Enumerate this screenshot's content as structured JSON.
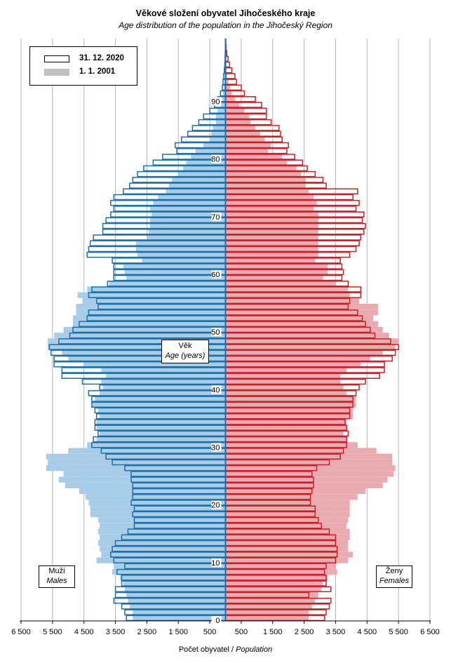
{
  "title": "Věkové složení obyvatel Jihočeského  kraje",
  "subtitle": "Age distribution of the population  in the Jihočeský Region",
  "xlabel": {
    "cz": "Počet obyvatel",
    "sep": " / ",
    "en": "Population"
  },
  "legend": {
    "current": "31. 12. 2020",
    "past": "1.   1. 2001"
  },
  "center_label": {
    "cz": "Věk",
    "en": "Age (years)"
  },
  "side_labels": {
    "males_cz": "Muži",
    "males_en": "Males",
    "females_cz": "Ženy",
    "females_en": "Females"
  },
  "colors": {
    "male_outline": "#1f6fa8",
    "male_past_fill": "#a8cde8",
    "female_outline": "#c8202a",
    "female_past_fill": "#eaabb0",
    "grid": "#b3b3b3"
  },
  "chart_data": {
    "type": "bar",
    "orientation": "horizontal",
    "layout": "population pyramid",
    "x_ticks": [
      "6 500",
      "5 500",
      "4 500",
      "3 500",
      "2 500",
      "1 500",
      "500",
      "500",
      "1 500",
      "2 500",
      "3 500",
      "4 500",
      "5 500",
      "6 500"
    ],
    "y_ticks": [
      0,
      10,
      20,
      30,
      40,
      50,
      60,
      70,
      80,
      90
    ],
    "xlim": [
      0,
      6500
    ],
    "ylim": [
      0,
      100
    ],
    "ages": [
      0,
      1,
      2,
      3,
      4,
      5,
      6,
      7,
      8,
      9,
      10,
      11,
      12,
      13,
      14,
      15,
      16,
      17,
      18,
      19,
      20,
      21,
      22,
      23,
      24,
      25,
      26,
      27,
      28,
      29,
      30,
      31,
      32,
      33,
      34,
      35,
      36,
      37,
      38,
      39,
      40,
      41,
      42,
      43,
      44,
      45,
      46,
      47,
      48,
      49,
      50,
      51,
      52,
      53,
      54,
      55,
      56,
      57,
      58,
      59,
      60,
      61,
      62,
      63,
      64,
      65,
      66,
      67,
      68,
      69,
      70,
      71,
      72,
      73,
      74,
      75,
      76,
      77,
      78,
      79,
      80,
      81,
      82,
      83,
      84,
      85,
      86,
      87,
      88,
      89,
      90,
      91,
      92,
      93,
      94,
      95,
      96,
      97,
      98,
      99,
      100
    ],
    "series": [
      {
        "name": "31. 12. 2020",
        "side": "males",
        "values": [
          3150,
          3200,
          3300,
          3550,
          3500,
          3500,
          3300,
          3300,
          3450,
          3200,
          3550,
          3650,
          3600,
          3500,
          3300,
          3100,
          2900,
          2900,
          2950,
          2900,
          3000,
          2950,
          2950,
          2950,
          3000,
          3000,
          3200,
          3600,
          3800,
          3950,
          4250,
          4200,
          4050,
          4150,
          4150,
          4100,
          4150,
          4250,
          4250,
          4350,
          4000,
          4550,
          5200,
          5200,
          5450,
          5450,
          5550,
          5600,
          5300,
          4950,
          4850,
          4650,
          4400,
          4350,
          4050,
          4100,
          4350,
          4250,
          3750,
          3550,
          3550,
          3550,
          3600,
          4400,
          4350,
          4300,
          4200,
          3900,
          3900,
          3800,
          3650,
          3550,
          3650,
          3550,
          3250,
          3050,
          2950,
          2800,
          2600,
          2300,
          2000,
          1550,
          1600,
          1400,
          1200,
          1050,
          850,
          700,
          500,
          350,
          250,
          160,
          100,
          80,
          60,
          40,
          25,
          15,
          10,
          5,
          3
        ]
      },
      {
        "name": "1.   1. 2001",
        "side": "males",
        "values": [
          2950,
          2950,
          3050,
          3100,
          3150,
          3200,
          3250,
          3350,
          3600,
          3550,
          4100,
          3950,
          4000,
          4050,
          4000,
          4050,
          4000,
          4050,
          4300,
          4300,
          4350,
          4450,
          4650,
          5100,
          5300,
          5150,
          5700,
          5650,
          5700,
          5000,
          4400,
          4100,
          4000,
          4100,
          4100,
          4000,
          4050,
          4250,
          4150,
          4000,
          3900,
          3950,
          3800,
          3950,
          4500,
          5000,
          5200,
          5650,
          5650,
          5450,
          5150,
          4850,
          4850,
          4750,
          4750,
          4550,
          4700,
          4400,
          3700,
          3150,
          3200,
          3250,
          2650,
          2800,
          2850,
          2850,
          2500,
          2450,
          2400,
          2400,
          2350,
          2400,
          2300,
          2150,
          1900,
          1800,
          1700,
          1500,
          1350,
          1250,
          1100,
          950,
          700,
          500,
          450,
          400,
          300,
          300,
          250,
          150,
          100,
          80,
          50,
          30,
          20,
          12,
          8,
          5,
          3,
          2,
          1
        ]
      },
      {
        "name": "31. 12. 2020",
        "side": "females",
        "values": [
          3150,
          3200,
          3300,
          3350,
          2650,
          3350,
          3200,
          3200,
          3150,
          3200,
          3500,
          3550,
          3550,
          3500,
          3500,
          3300,
          3050,
          2950,
          2850,
          2850,
          2700,
          2700,
          2750,
          2800,
          2800,
          2750,
          2900,
          3300,
          3650,
          3750,
          3850,
          3850,
          3900,
          3850,
          3800,
          3950,
          3950,
          4050,
          4050,
          4150,
          4250,
          4450,
          4900,
          5050,
          5050,
          5300,
          5400,
          5500,
          5250,
          4750,
          4600,
          4450,
          4350,
          4200,
          3900,
          3950,
          4300,
          4300,
          3900,
          3700,
          3750,
          3700,
          3650,
          3950,
          4150,
          4250,
          4300,
          4400,
          4450,
          4350,
          4400,
          4150,
          4250,
          4050,
          4200,
          3200,
          3100,
          2850,
          2600,
          2450,
          2200,
          1950,
          2000,
          1800,
          1750,
          1700,
          1450,
          1300,
          1300,
          1150,
          950,
          600,
          500,
          350,
          300,
          200,
          130,
          80,
          40,
          20,
          10
        ]
      },
      {
        "name": "1.   1. 2001",
        "side": "females",
        "values": [
          2650,
          2650,
          2750,
          2850,
          2950,
          3050,
          3100,
          3250,
          3550,
          3500,
          3900,
          4050,
          3900,
          3900,
          3950,
          3950,
          3850,
          3900,
          3950,
          3950,
          3950,
          4200,
          4450,
          5000,
          5150,
          5350,
          5400,
          5300,
          5300,
          4800,
          4200,
          3850,
          3750,
          3850,
          3850,
          4050,
          4050,
          4150,
          4150,
          3850,
          3750,
          3650,
          3650,
          3850,
          4300,
          4600,
          5000,
          5400,
          5500,
          5200,
          5000,
          4850,
          4700,
          4850,
          4850,
          4250,
          3950,
          3900,
          3500,
          3100,
          3250,
          3250,
          2850,
          2950,
          2950,
          2950,
          2950,
          2950,
          2950,
          2950,
          2950,
          2800,
          2900,
          2800,
          2650,
          2550,
          2550,
          2400,
          2250,
          1950,
          1800,
          1350,
          1450,
          1250,
          1100,
          950,
          800,
          750,
          600,
          450,
          300,
          200,
          150,
          100,
          60,
          30,
          20,
          10,
          5,
          3,
          2
        ]
      }
    ]
  }
}
